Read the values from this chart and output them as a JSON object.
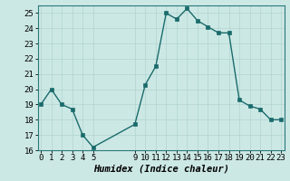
{
  "x": [
    0,
    1,
    2,
    3,
    4,
    5,
    9,
    10,
    11,
    12,
    13,
    14,
    15,
    16,
    17,
    18,
    19,
    20,
    21,
    22,
    23
  ],
  "y": [
    19,
    20,
    19,
    18.7,
    17,
    16.2,
    17.7,
    20.3,
    21.5,
    25.0,
    24.6,
    25.3,
    24.5,
    24.1,
    23.7,
    23.7,
    19.3,
    18.9,
    18.7,
    18.0,
    18.0
  ],
  "line_color": "#1a6b6b",
  "marker_color": "#1a6b6b",
  "bg_color": "#cce8e5",
  "grid_color": "#b0d4d0",
  "xlabel": "Humidex (Indice chaleur)",
  "ylim": [
    16,
    25.5
  ],
  "yticks": [
    16,
    17,
    18,
    19,
    20,
    21,
    22,
    23,
    24,
    25
  ],
  "xticks": [
    0,
    1,
    2,
    3,
    4,
    5,
    9,
    10,
    11,
    12,
    13,
    14,
    15,
    16,
    17,
    18,
    19,
    20,
    21,
    22,
    23
  ],
  "xlim": [
    -0.3,
    23.3
  ],
  "xlabel_fontsize": 7.5,
  "tick_fontsize": 6.5,
  "line_width": 1.0,
  "marker_size": 2.5
}
